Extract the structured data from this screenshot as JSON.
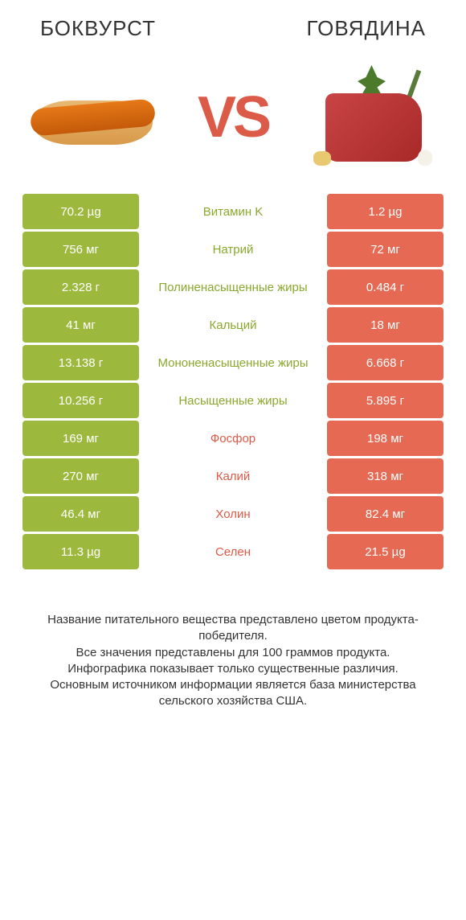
{
  "titles": {
    "left": "БОКВУРСТ",
    "right": "ГОВЯДИНА"
  },
  "vs": "VS",
  "colors": {
    "green": "#9cb93e",
    "red": "#e66a53",
    "label_green": "#8aa82e",
    "label_red": "#db5a48",
    "background": "#ffffff",
    "text": "#333333"
  },
  "rows": [
    {
      "left_val": "70.2 µg",
      "label": "Витамин K",
      "right_val": "1.2 µg",
      "winner": "left"
    },
    {
      "left_val": "756 мг",
      "label": "Натрий",
      "right_val": "72 мг",
      "winner": "left"
    },
    {
      "left_val": "2.328 г",
      "label": "Полиненасыщенные жиры",
      "right_val": "0.484 г",
      "winner": "left"
    },
    {
      "left_val": "41 мг",
      "label": "Кальций",
      "right_val": "18 мг",
      "winner": "left"
    },
    {
      "left_val": "13.138 г",
      "label": "Мононенасыщенные жиры",
      "right_val": "6.668 г",
      "winner": "left"
    },
    {
      "left_val": "10.256 г",
      "label": "Насыщенные жиры",
      "right_val": "5.895 г",
      "winner": "left"
    },
    {
      "left_val": "169 мг",
      "label": "Фосфор",
      "right_val": "198 мг",
      "winner": "right"
    },
    {
      "left_val": "270 мг",
      "label": "Калий",
      "right_val": "318 мг",
      "winner": "right"
    },
    {
      "left_val": "46.4 мг",
      "label": "Холин",
      "right_val": "82.4 мг",
      "winner": "right"
    },
    {
      "left_val": "11.3 µg",
      "label": "Селен",
      "right_val": "21.5 µg",
      "winner": "right"
    }
  ],
  "footer_lines": [
    "Название питательного вещества представлено цветом продукта-победителя.",
    "Все значения представлены для 100 граммов продукта.",
    "Инфографика показывает только существенные различия.",
    "Основным источником информации является база министерства сельского хозяйства США."
  ]
}
